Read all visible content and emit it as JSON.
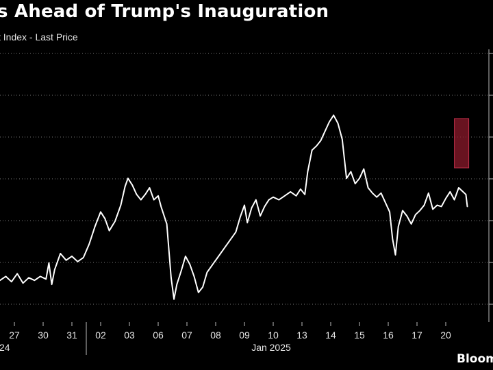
{
  "title": "s Ahead of Trump's Inauguration",
  "subtitle": "t Index - Last Price",
  "source_logo": "Bloom",
  "colors": {
    "background": "#000000",
    "line": "#ffffff",
    "grid": "#777777",
    "highlight_fill": "#8b1a2b",
    "highlight_edge": "#c0304a"
  },
  "chart_data": {
    "type": "line",
    "title": "",
    "xlabel": "",
    "ylabel": "",
    "grid": true,
    "legend": "none",
    "y_axis_labels_visible": false,
    "ylim": [
      0,
      10
    ],
    "xlim": [
      -0.5,
      16.5
    ],
    "x_tick_labels": [
      "27",
      "30",
      "31",
      "02",
      "03",
      "06",
      "07",
      "08",
      "09",
      "10",
      "13",
      "14",
      "15",
      "16",
      "17",
      "20"
    ],
    "x_group_labels": [
      {
        "label": "24",
        "position": 0
      },
      {
        "label": "Jan 2025",
        "position": 9
      }
    ],
    "highlight": {
      "x_start": 15.3,
      "x_end": 15.8
    },
    "series": [
      {
        "values": [
          [
            -0.5,
            1.55
          ],
          [
            -0.3,
            1.7
          ],
          [
            -0.1,
            1.5
          ],
          [
            0.1,
            1.8
          ],
          [
            0.3,
            1.45
          ],
          [
            0.5,
            1.65
          ],
          [
            0.7,
            1.55
          ],
          [
            0.9,
            1.7
          ],
          [
            1.1,
            1.6
          ],
          [
            1.2,
            2.2
          ],
          [
            1.3,
            1.4
          ],
          [
            1.4,
            1.95
          ],
          [
            1.6,
            2.55
          ],
          [
            1.8,
            2.3
          ],
          [
            2.0,
            2.45
          ],
          [
            2.2,
            2.25
          ],
          [
            2.4,
            2.4
          ],
          [
            2.6,
            2.9
          ],
          [
            2.8,
            3.55
          ],
          [
            3.0,
            4.1
          ],
          [
            3.15,
            3.85
          ],
          [
            3.3,
            3.4
          ],
          [
            3.5,
            3.75
          ],
          [
            3.7,
            4.35
          ],
          [
            3.85,
            5.05
          ],
          [
            3.95,
            5.35
          ],
          [
            4.1,
            5.1
          ],
          [
            4.25,
            4.75
          ],
          [
            4.4,
            4.55
          ],
          [
            4.55,
            4.75
          ],
          [
            4.7,
            5.0
          ],
          [
            4.85,
            4.55
          ],
          [
            5.0,
            4.7
          ],
          [
            5.1,
            4.3
          ],
          [
            5.3,
            3.65
          ],
          [
            5.45,
            1.65
          ],
          [
            5.55,
            0.85
          ],
          [
            5.65,
            1.4
          ],
          [
            5.8,
            1.9
          ],
          [
            5.95,
            2.45
          ],
          [
            6.1,
            2.15
          ],
          [
            6.25,
            1.7
          ],
          [
            6.4,
            1.1
          ],
          [
            6.55,
            1.3
          ],
          [
            6.7,
            1.85
          ],
          [
            6.9,
            2.15
          ],
          [
            7.1,
            2.45
          ],
          [
            7.3,
            2.75
          ],
          [
            7.5,
            3.05
          ],
          [
            7.7,
            3.35
          ],
          [
            7.85,
            3.9
          ],
          [
            8.0,
            4.35
          ],
          [
            8.1,
            3.7
          ],
          [
            8.25,
            4.25
          ],
          [
            8.4,
            4.55
          ],
          [
            8.55,
            3.95
          ],
          [
            8.7,
            4.3
          ],
          [
            8.85,
            4.55
          ],
          [
            9.0,
            4.65
          ],
          [
            9.2,
            4.55
          ],
          [
            9.4,
            4.7
          ],
          [
            9.6,
            4.85
          ],
          [
            9.8,
            4.7
          ],
          [
            9.95,
            4.95
          ],
          [
            10.1,
            4.75
          ],
          [
            10.2,
            5.6
          ],
          [
            10.35,
            6.4
          ],
          [
            10.5,
            6.55
          ],
          [
            10.65,
            6.75
          ],
          [
            10.8,
            7.1
          ],
          [
            10.95,
            7.45
          ],
          [
            11.1,
            7.7
          ],
          [
            11.25,
            7.4
          ],
          [
            11.4,
            6.8
          ],
          [
            11.55,
            5.35
          ],
          [
            11.7,
            5.6
          ],
          [
            11.85,
            5.15
          ],
          [
            12.0,
            5.35
          ],
          [
            12.15,
            5.7
          ],
          [
            12.3,
            5.0
          ],
          [
            12.45,
            4.8
          ],
          [
            12.6,
            4.65
          ],
          [
            12.75,
            4.8
          ],
          [
            12.9,
            4.45
          ],
          [
            13.05,
            4.1
          ],
          [
            13.15,
            3.1
          ],
          [
            13.25,
            2.5
          ],
          [
            13.35,
            3.55
          ],
          [
            13.5,
            4.15
          ],
          [
            13.65,
            3.95
          ],
          [
            13.8,
            3.65
          ],
          [
            13.95,
            4.0
          ],
          [
            14.1,
            4.15
          ],
          [
            14.25,
            4.35
          ],
          [
            14.4,
            4.8
          ],
          [
            14.55,
            4.2
          ],
          [
            14.7,
            4.35
          ],
          [
            14.85,
            4.3
          ],
          [
            15.0,
            4.6
          ],
          [
            15.15,
            4.85
          ],
          [
            15.3,
            4.55
          ],
          [
            15.45,
            5.0
          ],
          [
            15.6,
            4.85
          ],
          [
            15.7,
            4.75
          ],
          [
            15.75,
            4.3
          ]
        ]
      }
    ]
  }
}
